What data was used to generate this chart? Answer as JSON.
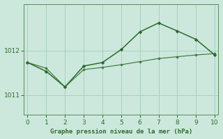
{
  "line1_x": [
    0,
    1,
    2,
    3,
    4,
    5,
    6,
    7,
    8,
    9,
    10
  ],
  "line1_y": [
    1011.73,
    1011.53,
    1011.18,
    1011.65,
    1011.73,
    1012.02,
    1012.42,
    1012.62,
    1012.44,
    1012.25,
    1011.9
  ],
  "line2_x": [
    0,
    1,
    2,
    3,
    4,
    5,
    6,
    7,
    8,
    9,
    10
  ],
  "line2_y": [
    1011.73,
    1011.6,
    1011.18,
    1011.57,
    1011.62,
    1011.68,
    1011.75,
    1011.82,
    1011.86,
    1011.9,
    1011.93
  ],
  "line1_color": "#2d6a2d",
  "line2_color": "#3a7a3a",
  "bg_color": "#cce8dc",
  "grid_color": "#aacfbe",
  "xlabel": "Graphe pression niveau de la mer (hPa)",
  "xlabel_color": "#2d6a2d",
  "tick_color": "#2d6a2d",
  "axis_color": "#5a8a5a",
  "ylim_min": 1010.55,
  "ylim_max": 1013.05,
  "xlim_min": -0.2,
  "xlim_max": 10.2,
  "yticks": [
    1011,
    1012
  ],
  "xticks": [
    0,
    1,
    2,
    3,
    4,
    5,
    6,
    7,
    8,
    9,
    10
  ]
}
